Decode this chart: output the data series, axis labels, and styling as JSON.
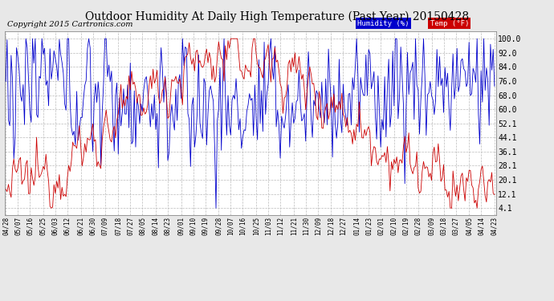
{
  "title": "Outdoor Humidity At Daily High Temperature (Past Year) 20150428",
  "copyright": "Copyright 2015 Cartronics.com",
  "yticks": [
    100.0,
    92.0,
    84.0,
    76.0,
    68.0,
    60.0,
    52.1,
    44.1,
    36.1,
    28.1,
    20.1,
    12.1,
    4.1
  ],
  "ymin": 0,
  "ymax": 104,
  "legend_humidity_label": "Humidity (%)",
  "legend_temp_label": "Temp (°F)",
  "humidity_color": "#0000cc",
  "temp_color": "#cc0000",
  "plot_bg_color": "#ffffff",
  "fig_bg_color": "#e8e8e8",
  "grid_color": "#bbbbbb",
  "title_fontsize": 10,
  "copyright_fontsize": 7,
  "x_labels": [
    "04/28",
    "05/07",
    "05/16",
    "05/25",
    "06/03",
    "06/12",
    "06/21",
    "06/30",
    "07/09",
    "07/18",
    "07/27",
    "08/05",
    "08/14",
    "08/23",
    "09/01",
    "09/10",
    "09/19",
    "09/28",
    "10/07",
    "10/16",
    "10/25",
    "11/03",
    "11/12",
    "11/21",
    "11/30",
    "12/09",
    "12/18",
    "12/27",
    "01/14",
    "01/23",
    "02/01",
    "02/10",
    "02/19",
    "02/28",
    "03/09",
    "03/18",
    "03/27",
    "04/05",
    "04/14",
    "04/23"
  ],
  "n_points": 366
}
